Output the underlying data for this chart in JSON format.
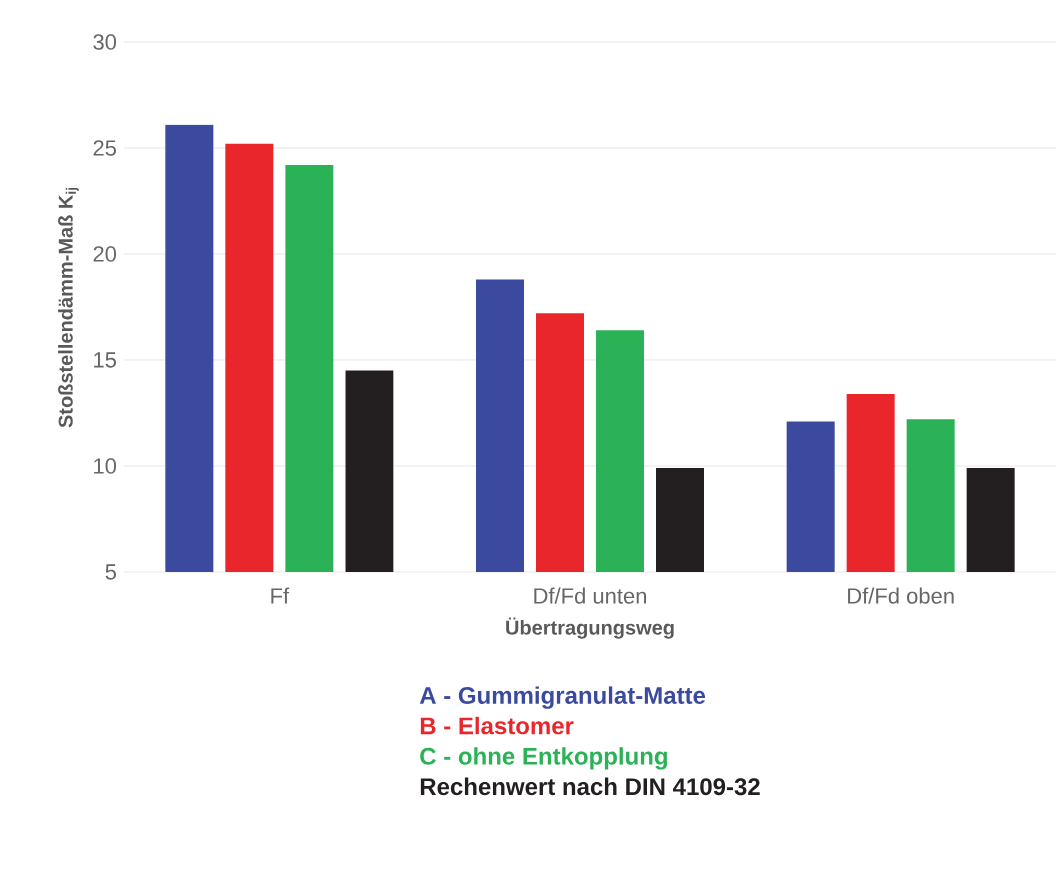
{
  "chart_data": {
    "type": "bar",
    "xlabel": "Übertragungsweg",
    "ylabel": "Stoßstellendämm-Maß K$_{ij}$",
    "categories": [
      "Ff",
      "Df/Fd unten",
      "Df/Fd oben"
    ],
    "series": [
      {
        "name": "A - Gummigranulat-Matte",
        "color": "#3b4a9e",
        "values": [
          26.1,
          18.8,
          12.1
        ]
      },
      {
        "name": "B - Elastomer",
        "color": "#ea262d",
        "values": [
          25.2,
          17.2,
          13.4
        ]
      },
      {
        "name": "C - ohne Entkopplung",
        "color": "#2bb257",
        "values": [
          24.2,
          16.4,
          12.2
        ]
      },
      {
        "name": "Rechenwert nach DIN 4109-32",
        "color": "#231f20",
        "values": [
          14.5,
          9.9,
          9.9
        ]
      }
    ],
    "ylim": [
      5,
      30
    ],
    "yticks": [
      5,
      10,
      15,
      20,
      25,
      30
    ],
    "grid": "y",
    "legend": "bottom"
  }
}
